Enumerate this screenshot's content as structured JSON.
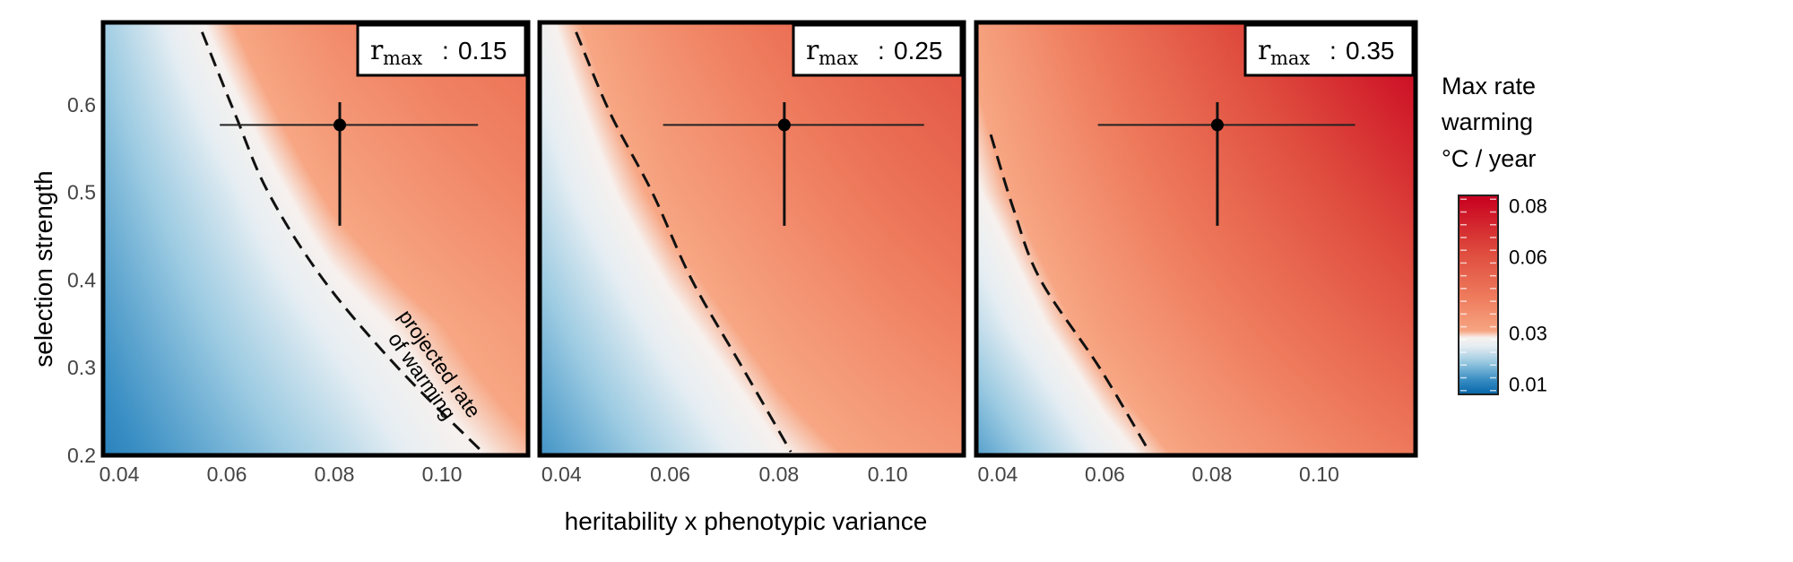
{
  "figure": {
    "ylabel": "selection strength",
    "xlabel": "heritability x phenotypic variance"
  },
  "colorbar": {
    "title_lines": [
      "Max rate",
      "warming",
      "°C / year"
    ],
    "ticks": [
      0.08,
      0.06,
      0.03,
      0.01
    ],
    "tick_labels": [
      "0.08",
      "0.06",
      "0.03",
      "0.01"
    ],
    "range": [
      0.006,
      0.084
    ],
    "colormap": [
      {
        "v": 0.006,
        "c": "#0565a8"
      },
      {
        "v": 0.012,
        "c": "#3a8fc4"
      },
      {
        "v": 0.019,
        "c": "#9ccbe2"
      },
      {
        "v": 0.025,
        "c": "#e6eef3"
      },
      {
        "v": 0.0285,
        "c": "#f7f1ee"
      },
      {
        "v": 0.031,
        "c": "#f7a683"
      },
      {
        "v": 0.045,
        "c": "#ee7a5c"
      },
      {
        "v": 0.062,
        "c": "#df4c3e"
      },
      {
        "v": 0.084,
        "c": "#c8001f"
      }
    ]
  },
  "chart_data": [
    {
      "type": "heatmap",
      "label": {
        "symbol": "r",
        "subscript": "max",
        "separator": ":",
        "value": "0.15"
      },
      "xlim": [
        0.037,
        0.116
      ],
      "ylim": [
        0.2,
        0.694
      ],
      "x_ticks": [
        0.04,
        0.06,
        0.08,
        0.1
      ],
      "x_tick_labels": [
        "0.04",
        "0.06",
        "0.08",
        "0.10"
      ],
      "y_ticks": [
        0.2,
        0.3,
        0.4,
        0.5,
        0.6
      ],
      "y_tick_labels": [
        "0.2",
        "0.3",
        "0.4",
        "0.5",
        "0.6"
      ],
      "grid": {
        "x": [
          0.04,
          0.06,
          0.08,
          0.1,
          0.12
        ],
        "y": [
          0.2,
          0.35,
          0.5,
          0.65
        ],
        "z": [
          [
            0.011,
            0.016,
            0.021,
            0.027,
            0.031
          ],
          [
            0.014,
            0.02,
            0.026,
            0.031,
            0.036
          ],
          [
            0.017,
            0.024,
            0.032,
            0.038,
            0.043
          ],
          [
            0.02,
            0.029,
            0.038,
            0.044,
            0.048
          ]
        ]
      },
      "contour_projected_warming": [
        [
          0.0554,
          0.683
        ],
        [
          0.0615,
          0.59
        ],
        [
          0.0677,
          0.5
        ],
        [
          0.078,
          0.4
        ],
        [
          0.0918,
          0.3
        ],
        [
          0.1075,
          0.204
        ]
      ],
      "annotation_lines": [
        "projected rate",
        "of warming"
      ],
      "point": {
        "x": 0.081,
        "y": 0.577,
        "xerr": [
          0.0587,
          0.1067
        ],
        "yerr": [
          0.462,
          0.603
        ]
      }
    },
    {
      "type": "heatmap",
      "label": {
        "symbol": "r",
        "subscript": "max",
        "separator": ":",
        "value": "0.25"
      },
      "xlim": [
        0.036,
        0.114
      ],
      "ylim": [
        0.2,
        0.694
      ],
      "x_ticks": [
        0.04,
        0.06,
        0.08,
        0.1
      ],
      "x_tick_labels": [
        "0.04",
        "0.06",
        "0.08",
        "0.10"
      ],
      "grid": {
        "x": [
          0.04,
          0.06,
          0.08,
          0.1,
          0.12
        ],
        "y": [
          0.2,
          0.35,
          0.5,
          0.65
        ],
        "z": [
          [
            0.014,
            0.021,
            0.028,
            0.033,
            0.037
          ],
          [
            0.019,
            0.027,
            0.034,
            0.04,
            0.045
          ],
          [
            0.024,
            0.033,
            0.04,
            0.047,
            0.053
          ],
          [
            0.028,
            0.038,
            0.046,
            0.054,
            0.06
          ]
        ]
      },
      "contour_projected_warming": [
        [
          0.0427,
          0.683
        ],
        [
          0.049,
          0.59
        ],
        [
          0.0567,
          0.5
        ],
        [
          0.064,
          0.4
        ],
        [
          0.0733,
          0.3
        ],
        [
          0.0822,
          0.204
        ]
      ],
      "point": {
        "x": 0.081,
        "y": 0.577,
        "xerr": [
          0.0587,
          0.1067
        ],
        "yerr": [
          0.462,
          0.603
        ]
      }
    },
    {
      "type": "heatmap",
      "label": {
        "symbol": "r",
        "subscript": "max",
        "separator": ":",
        "value": "0.35"
      },
      "xlim": [
        0.036,
        0.118
      ],
      "ylim": [
        0.2,
        0.694
      ],
      "x_ticks": [
        0.04,
        0.06,
        0.08,
        0.1
      ],
      "x_tick_labels": [
        "0.04",
        "0.06",
        "0.08",
        "0.10"
      ],
      "grid": {
        "x": [
          0.04,
          0.06,
          0.08,
          0.1,
          0.12
        ],
        "y": [
          0.2,
          0.35,
          0.5,
          0.65
        ],
        "z": [
          [
            0.016,
            0.026,
            0.034,
            0.04,
            0.046
          ],
          [
            0.024,
            0.034,
            0.042,
            0.05,
            0.058
          ],
          [
            0.03,
            0.04,
            0.05,
            0.06,
            0.07
          ],
          [
            0.034,
            0.046,
            0.058,
            0.07,
            0.082
          ]
        ]
      },
      "contour_projected_warming": [
        [
          0.0387,
          0.566
        ],
        [
          0.043,
          0.48
        ],
        [
          0.048,
          0.4
        ],
        [
          0.059,
          0.3
        ],
        [
          0.0683,
          0.204
        ]
      ],
      "point": {
        "x": 0.081,
        "y": 0.577,
        "xerr": [
          0.0587,
          0.1067
        ],
        "yerr": [
          0.462,
          0.603
        ]
      }
    }
  ]
}
